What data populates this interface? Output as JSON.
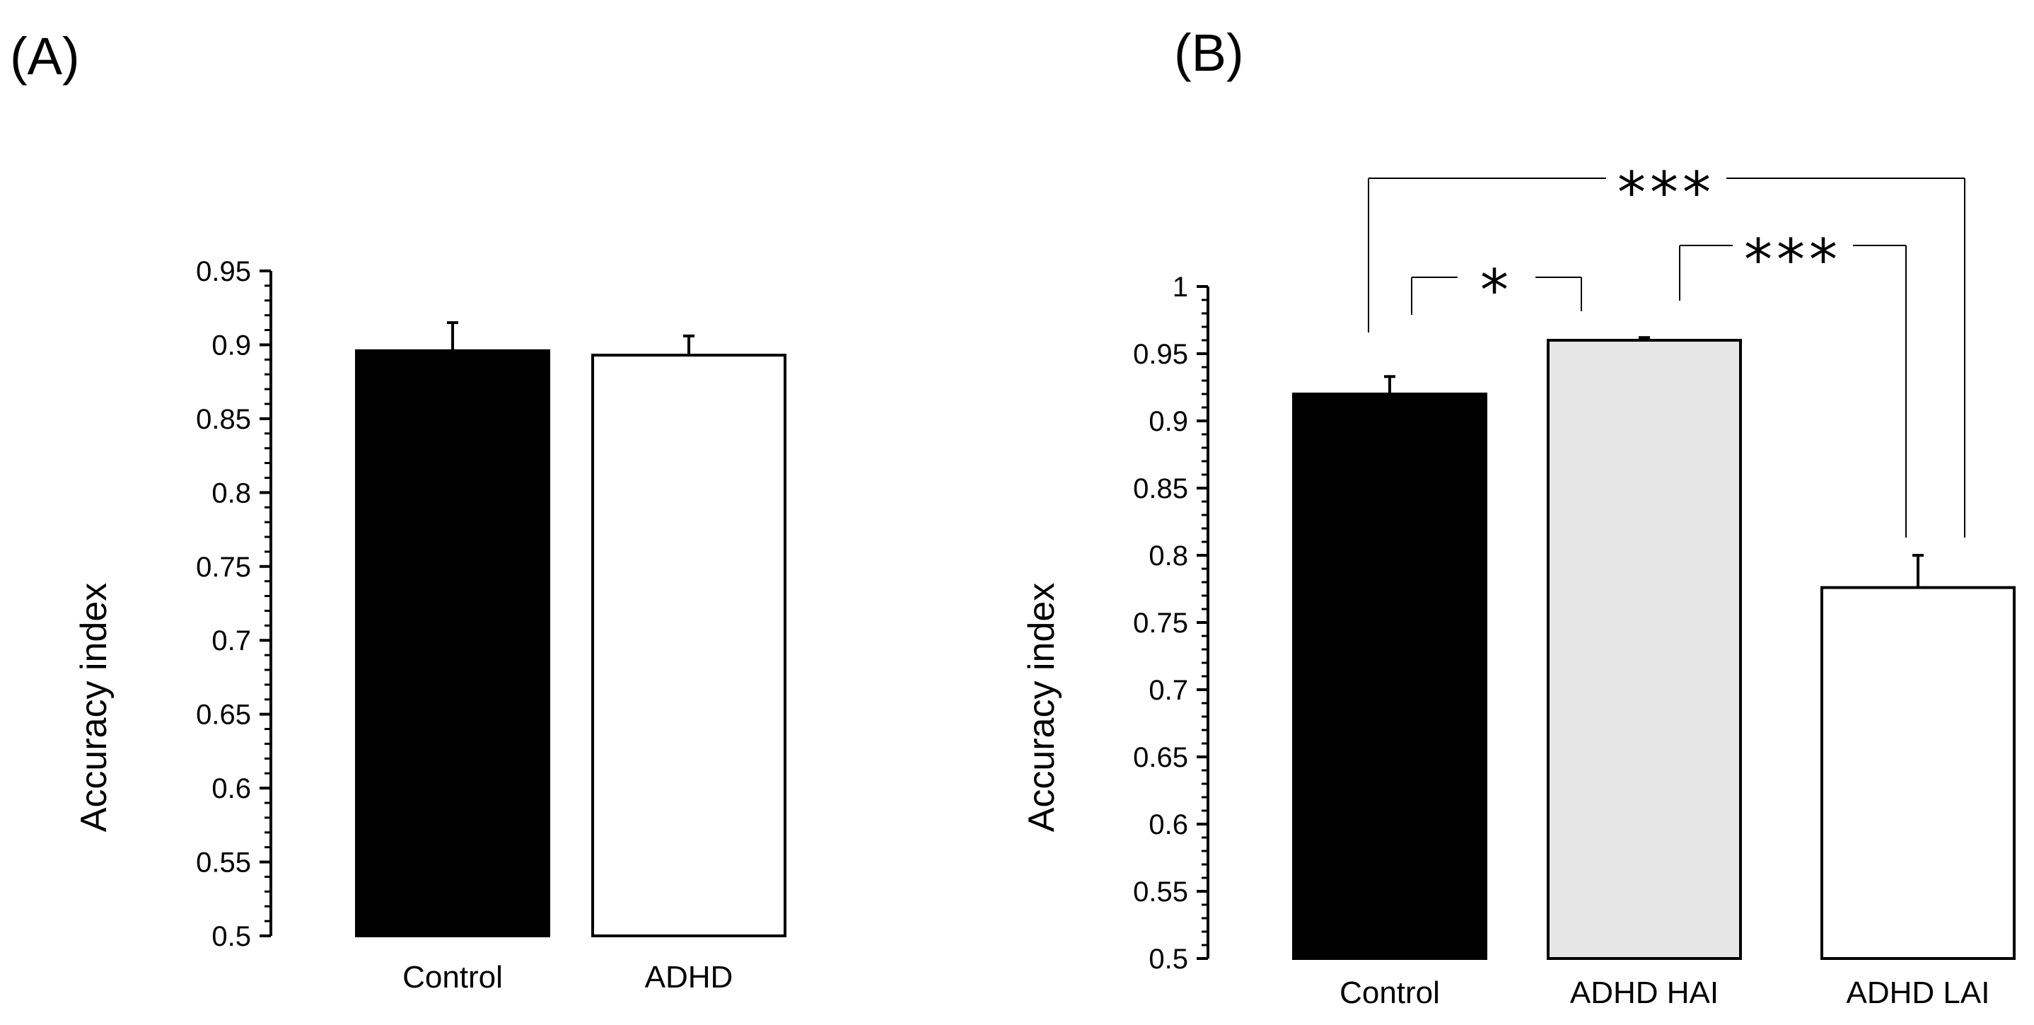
{
  "chart_data": [
    {
      "type": "bar",
      "panel_label": "(A)",
      "ylabel": "Accuracy index",
      "ylim": [
        0.5,
        0.95
      ],
      "yticks": [
        "0.5",
        "0.55",
        "0.6",
        "0.65",
        "0.7",
        "0.75",
        "0.8",
        "0.85",
        "0.9",
        "0.95"
      ],
      "categories": [
        "Control",
        "ADHD"
      ],
      "values": [
        0.896,
        0.893
      ],
      "errors": [
        0.019,
        0.013
      ],
      "colors": [
        "#000000",
        "#ffffff"
      ],
      "significance": []
    },
    {
      "type": "bar",
      "panel_label": "(B)",
      "ylabel": "Accuracy index",
      "ylim": [
        0.5,
        1.0
      ],
      "yticks": [
        "0.5",
        "0.55",
        "0.6",
        "0.65",
        "0.7",
        "0.75",
        "0.8",
        "0.85",
        "0.9",
        "0.95",
        "1"
      ],
      "categories": [
        "Control",
        "ADHD HAI",
        "ADHD LAI"
      ],
      "values": [
        0.92,
        0.96,
        0.776
      ],
      "errors": [
        0.013,
        0.002,
        0.024
      ],
      "colors": [
        "#000000",
        "#e6e6e6",
        "#ffffff"
      ],
      "significance": [
        {
          "from": 0,
          "to": 1,
          "label": "*"
        },
        {
          "from": 1,
          "to": 2,
          "label": "***"
        },
        {
          "from": 0,
          "to": 2,
          "label": "***"
        }
      ]
    }
  ]
}
